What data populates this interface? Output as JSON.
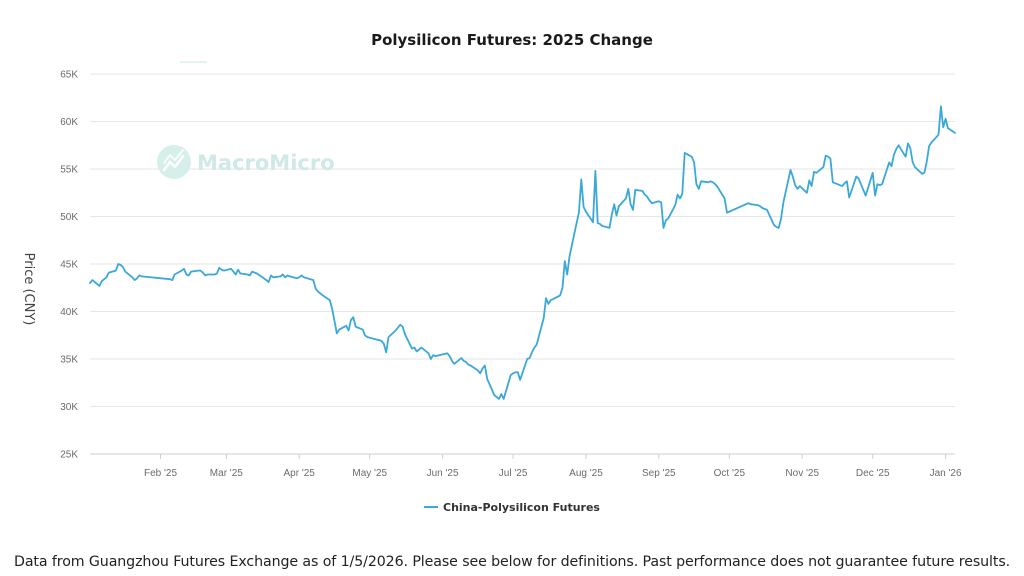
{
  "colors": {
    "series": "#3aa8d8",
    "grid": "#e6e6e6",
    "watermark": "#cfe9e6",
    "axis_text": "#6b6b6b"
  },
  "watermark": {
    "text": "MacroMicro",
    "icon": "macromicro-logo-icon"
  },
  "footnote": "Data from Guangzhou Futures Exchange as of 1/5/2026. Please see below for definitions. Past performance does not guarantee future results.",
  "chart_data": {
    "type": "line",
    "title": "Polysilicon Futures: 2025 Change",
    "xlabel": "",
    "ylabel": "Price (CNY)",
    "ylim": [
      25000,
      65000
    ],
    "y_ticks": [
      25000,
      30000,
      35000,
      40000,
      45000,
      50000,
      55000,
      60000,
      65000
    ],
    "y_tick_labels": [
      "25K",
      "30K",
      "35K",
      "40K",
      "45K",
      "50K",
      "55K",
      "60K",
      "65K"
    ],
    "x_range": [
      "2025-01-02",
      "2026-01-05"
    ],
    "x_ticks": [
      "2025-02-01",
      "2025-03-01",
      "2025-04-01",
      "2025-05-01",
      "2025-06-01",
      "2025-07-01",
      "2025-08-01",
      "2025-09-01",
      "2025-10-01",
      "2025-11-01",
      "2025-12-01",
      "2026-01-01"
    ],
    "x_tick_labels": [
      "Feb '25",
      "Mar '25",
      "Apr '25",
      "May '25",
      "Jun '25",
      "Jul '25",
      "Aug '25",
      "Sep '25",
      "Oct '25",
      "Nov '25",
      "Dec '25",
      "Jan '26"
    ],
    "legend": {
      "position": "bottom-center"
    },
    "series": [
      {
        "name": "China-Polysilicon Futures",
        "points": [
          [
            "2025-01-02",
            43000
          ],
          [
            "2025-01-03",
            43300
          ],
          [
            "2025-01-06",
            42700
          ],
          [
            "2025-01-07",
            43200
          ],
          [
            "2025-01-08",
            43400
          ],
          [
            "2025-01-09",
            43600
          ],
          [
            "2025-01-10",
            44100
          ],
          [
            "2025-01-13",
            44300
          ],
          [
            "2025-01-14",
            45000
          ],
          [
            "2025-01-15",
            44900
          ],
          [
            "2025-01-16",
            44700
          ],
          [
            "2025-01-17",
            44200
          ],
          [
            "2025-01-20",
            43600
          ],
          [
            "2025-01-21",
            43300
          ],
          [
            "2025-01-22",
            43500
          ],
          [
            "2025-01-23",
            43800
          ],
          [
            "2025-01-24",
            43700
          ],
          [
            "2025-02-05",
            43400
          ],
          [
            "2025-02-06",
            43300
          ],
          [
            "2025-02-07",
            43900
          ],
          [
            "2025-02-10",
            44300
          ],
          [
            "2025-02-11",
            44500
          ],
          [
            "2025-02-12",
            43900
          ],
          [
            "2025-02-13",
            43800
          ],
          [
            "2025-02-14",
            44200
          ],
          [
            "2025-02-17",
            44300
          ],
          [
            "2025-02-18",
            44300
          ],
          [
            "2025-02-19",
            44100
          ],
          [
            "2025-02-20",
            43800
          ],
          [
            "2025-02-21",
            43900
          ],
          [
            "2025-02-24",
            43900
          ],
          [
            "2025-02-25",
            44000
          ],
          [
            "2025-02-26",
            44600
          ],
          [
            "2025-02-27",
            44400
          ],
          [
            "2025-02-28",
            44300
          ],
          [
            "2025-03-03",
            44500
          ],
          [
            "2025-03-04",
            44200
          ],
          [
            "2025-03-05",
            43900
          ],
          [
            "2025-03-06",
            44400
          ],
          [
            "2025-03-07",
            44000
          ],
          [
            "2025-03-10",
            43900
          ],
          [
            "2025-03-11",
            43800
          ],
          [
            "2025-03-12",
            44200
          ],
          [
            "2025-03-13",
            44100
          ],
          [
            "2025-03-14",
            44000
          ],
          [
            "2025-03-17",
            43500
          ],
          [
            "2025-03-18",
            43300
          ],
          [
            "2025-03-19",
            43100
          ],
          [
            "2025-03-20",
            43800
          ],
          [
            "2025-03-21",
            43600
          ],
          [
            "2025-03-24",
            43700
          ],
          [
            "2025-03-25",
            43900
          ],
          [
            "2025-03-26",
            43600
          ],
          [
            "2025-03-27",
            43800
          ],
          [
            "2025-03-28",
            43700
          ],
          [
            "2025-03-31",
            43500
          ],
          [
            "2025-04-01",
            43600
          ],
          [
            "2025-04-02",
            43800
          ],
          [
            "2025-04-03",
            43600
          ],
          [
            "2025-04-07",
            43300
          ],
          [
            "2025-04-08",
            42400
          ],
          [
            "2025-04-09",
            42100
          ],
          [
            "2025-04-10",
            41900
          ],
          [
            "2025-04-11",
            41700
          ],
          [
            "2025-04-14",
            41200
          ],
          [
            "2025-04-15",
            40300
          ],
          [
            "2025-04-16",
            39000
          ],
          [
            "2025-04-17",
            37700
          ],
          [
            "2025-04-18",
            38100
          ],
          [
            "2025-04-21",
            38500
          ],
          [
            "2025-04-22",
            38000
          ],
          [
            "2025-04-23",
            39100
          ],
          [
            "2025-04-24",
            39400
          ],
          [
            "2025-04-25",
            38400
          ],
          [
            "2025-04-28",
            38100
          ],
          [
            "2025-04-29",
            37500
          ],
          [
            "2025-04-30",
            37300
          ],
          [
            "2025-05-06",
            36900
          ],
          [
            "2025-05-07",
            36600
          ],
          [
            "2025-05-08",
            35700
          ],
          [
            "2025-05-09",
            37300
          ],
          [
            "2025-05-12",
            38000
          ],
          [
            "2025-05-13",
            38300
          ],
          [
            "2025-05-14",
            38600
          ],
          [
            "2025-05-15",
            38400
          ],
          [
            "2025-05-16",
            37600
          ],
          [
            "2025-05-19",
            36100
          ],
          [
            "2025-05-20",
            36200
          ],
          [
            "2025-05-21",
            35800
          ],
          [
            "2025-05-22",
            36000
          ],
          [
            "2025-05-23",
            36200
          ],
          [
            "2025-05-26",
            35600
          ],
          [
            "2025-05-27",
            35000
          ],
          [
            "2025-05-28",
            35400
          ],
          [
            "2025-05-29",
            35300
          ],
          [
            "2025-06-03",
            35600
          ],
          [
            "2025-06-04",
            35300
          ],
          [
            "2025-06-05",
            34800
          ],
          [
            "2025-06-06",
            34500
          ],
          [
            "2025-06-09",
            35100
          ],
          [
            "2025-06-10",
            34800
          ],
          [
            "2025-06-11",
            34700
          ],
          [
            "2025-06-12",
            34400
          ],
          [
            "2025-06-13",
            34300
          ],
          [
            "2025-06-16",
            33800
          ],
          [
            "2025-06-17",
            33500
          ],
          [
            "2025-06-18",
            34000
          ],
          [
            "2025-06-19",
            34300
          ],
          [
            "2025-06-20",
            32900
          ],
          [
            "2025-06-23",
            31200
          ],
          [
            "2025-06-24",
            31000
          ],
          [
            "2025-06-25",
            30800
          ],
          [
            "2025-06-26",
            31300
          ],
          [
            "2025-06-27",
            30800
          ],
          [
            "2025-06-30",
            33300
          ],
          [
            "2025-07-01",
            33500
          ],
          [
            "2025-07-02",
            33600
          ],
          [
            "2025-07-03",
            33600
          ],
          [
            "2025-07-04",
            32800
          ],
          [
            "2025-07-07",
            35000
          ],
          [
            "2025-07-08",
            35100
          ],
          [
            "2025-07-09",
            35700
          ],
          [
            "2025-07-10",
            36200
          ],
          [
            "2025-07-11",
            36500
          ],
          [
            "2025-07-14",
            39300
          ],
          [
            "2025-07-15",
            41400
          ],
          [
            "2025-07-16",
            40800
          ],
          [
            "2025-07-17",
            41200
          ],
          [
            "2025-07-18",
            41300
          ],
          [
            "2025-07-21",
            41700
          ],
          [
            "2025-07-22",
            42500
          ],
          [
            "2025-07-23",
            45300
          ],
          [
            "2025-07-24",
            43900
          ],
          [
            "2025-07-25",
            45800
          ],
          [
            "2025-07-28",
            49300
          ],
          [
            "2025-07-29",
            50400
          ],
          [
            "2025-07-30",
            53900
          ],
          [
            "2025-07-31",
            51000
          ],
          [
            "2025-08-01",
            50500
          ],
          [
            "2025-08-04",
            49400
          ],
          [
            "2025-08-05",
            54800
          ],
          [
            "2025-08-06",
            49300
          ],
          [
            "2025-08-07",
            49200
          ],
          [
            "2025-08-08",
            49000
          ],
          [
            "2025-08-11",
            48800
          ],
          [
            "2025-08-12",
            50200
          ],
          [
            "2025-08-13",
            51300
          ],
          [
            "2025-08-14",
            50100
          ],
          [
            "2025-08-15",
            51100
          ],
          [
            "2025-08-18",
            51900
          ],
          [
            "2025-08-19",
            52900
          ],
          [
            "2025-08-20",
            51300
          ],
          [
            "2025-08-21",
            50700
          ],
          [
            "2025-08-22",
            52800
          ],
          [
            "2025-08-25",
            52700
          ],
          [
            "2025-08-26",
            52300
          ],
          [
            "2025-08-27",
            52100
          ],
          [
            "2025-08-28",
            51700
          ],
          [
            "2025-08-29",
            51400
          ],
          [
            "2025-09-01",
            51600
          ],
          [
            "2025-09-02",
            51500
          ],
          [
            "2025-09-03",
            48800
          ],
          [
            "2025-09-04",
            49600
          ],
          [
            "2025-09-05",
            49800
          ],
          [
            "2025-09-08",
            51200
          ],
          [
            "2025-09-09",
            52300
          ],
          [
            "2025-09-10",
            51900
          ],
          [
            "2025-09-11",
            52400
          ],
          [
            "2025-09-12",
            56700
          ],
          [
            "2025-09-15",
            56300
          ],
          [
            "2025-09-16",
            55700
          ],
          [
            "2025-09-17",
            53400
          ],
          [
            "2025-09-18",
            52900
          ],
          [
            "2025-09-19",
            53700
          ],
          [
            "2025-09-22",
            53600
          ],
          [
            "2025-09-23",
            53700
          ],
          [
            "2025-09-24",
            53600
          ],
          [
            "2025-09-25",
            53400
          ],
          [
            "2025-09-26",
            53100
          ],
          [
            "2025-09-29",
            51900
          ],
          [
            "2025-09-30",
            50400
          ],
          [
            "2025-10-09",
            51400
          ],
          [
            "2025-10-10",
            51300
          ],
          [
            "2025-10-13",
            51200
          ],
          [
            "2025-10-14",
            51100
          ],
          [
            "2025-10-15",
            50900
          ],
          [
            "2025-10-16",
            50800
          ],
          [
            "2025-10-17",
            50700
          ],
          [
            "2025-10-20",
            49100
          ],
          [
            "2025-10-21",
            48900
          ],
          [
            "2025-10-22",
            48800
          ],
          [
            "2025-10-23",
            49800
          ],
          [
            "2025-10-24",
            51500
          ],
          [
            "2025-10-27",
            54900
          ],
          [
            "2025-10-28",
            54200
          ],
          [
            "2025-10-29",
            53300
          ],
          [
            "2025-10-30",
            52900
          ],
          [
            "2025-10-31",
            53200
          ],
          [
            "2025-11-03",
            52500
          ],
          [
            "2025-11-04",
            53800
          ],
          [
            "2025-11-05",
            53200
          ],
          [
            "2025-11-06",
            54700
          ],
          [
            "2025-11-07",
            54600
          ],
          [
            "2025-11-10",
            55200
          ],
          [
            "2025-11-11",
            56400
          ],
          [
            "2025-11-12",
            56300
          ],
          [
            "2025-11-13",
            56100
          ],
          [
            "2025-11-14",
            53600
          ],
          [
            "2025-11-17",
            53300
          ],
          [
            "2025-11-18",
            53200
          ],
          [
            "2025-11-19",
            53500
          ],
          [
            "2025-11-20",
            53700
          ],
          [
            "2025-11-21",
            52000
          ],
          [
            "2025-11-24",
            54200
          ],
          [
            "2025-11-25",
            54000
          ],
          [
            "2025-11-26",
            53400
          ],
          [
            "2025-11-27",
            52800
          ],
          [
            "2025-11-28",
            52200
          ],
          [
            "2025-12-01",
            54600
          ],
          [
            "2025-12-02",
            52200
          ],
          [
            "2025-12-03",
            53400
          ],
          [
            "2025-12-04",
            53300
          ],
          [
            "2025-12-05",
            53400
          ],
          [
            "2025-12-08",
            55700
          ],
          [
            "2025-12-09",
            55300
          ],
          [
            "2025-12-10",
            56500
          ],
          [
            "2025-12-11",
            57100
          ],
          [
            "2025-12-12",
            57500
          ],
          [
            "2025-12-15",
            56300
          ],
          [
            "2025-12-16",
            57700
          ],
          [
            "2025-12-17",
            57200
          ],
          [
            "2025-12-18",
            55700
          ],
          [
            "2025-12-19",
            55200
          ],
          [
            "2025-12-22",
            54500
          ],
          [
            "2025-12-23",
            54600
          ],
          [
            "2025-12-24",
            55800
          ],
          [
            "2025-12-25",
            57400
          ],
          [
            "2025-12-26",
            57800
          ],
          [
            "2025-12-29",
            58600
          ],
          [
            "2025-12-30",
            61600
          ],
          [
            "2025-12-31",
            59400
          ],
          [
            "2026-01-01",
            60300
          ],
          [
            "2026-01-02",
            59300
          ],
          [
            "2026-01-05",
            58800
          ]
        ]
      }
    ]
  }
}
